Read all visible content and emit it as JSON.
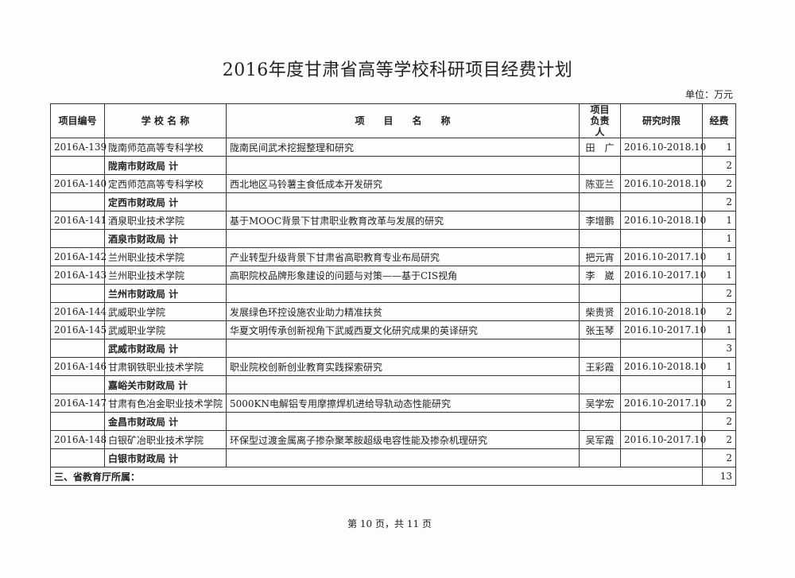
{
  "title": "2016年度甘肃省高等学校科研项目经费计划",
  "unit": "单位：万元",
  "headers": {
    "id": "项目编号",
    "school": "学 校 名 称",
    "project": "项　　目　　名　　称",
    "leader": "项目负责人",
    "period": "研究时限",
    "fund": "经费"
  },
  "rows": [
    {
      "type": "item",
      "id": "2016A-139",
      "school": "陇南师范高等专科学校",
      "project": "陇南民间武术挖掘整理和研究",
      "leader": "田　广",
      "period": "2016.10-2018.10",
      "fund": "1"
    },
    {
      "type": "subtotal",
      "school": "陇南市财政局 计",
      "fund": "2"
    },
    {
      "type": "item",
      "id": "2016A-140",
      "school": "定西师范高等专科学校",
      "project": "西北地区马铃薯主食低成本开发研究",
      "leader": "陈亚兰",
      "period": "2016.10-2018.10",
      "fund": "2"
    },
    {
      "type": "subtotal",
      "school": "定西市财政局 计",
      "fund": "2"
    },
    {
      "type": "item",
      "id": "2016A-141",
      "school": "酒泉职业技术学院",
      "project": "基于MOOC背景下甘肃职业教育改革与发展的研究",
      "leader": "李增鹏",
      "period": "2016.10-2018.10",
      "fund": "1"
    },
    {
      "type": "subtotal",
      "school": "酒泉市财政局 计",
      "fund": "1"
    },
    {
      "type": "item",
      "id": "2016A-142",
      "school": "兰州职业技术学院",
      "project": "产业转型升级背景下甘肃省高职教育专业布局研究",
      "leader": "把元宵",
      "period": "2016.10-2017.10",
      "fund": "1"
    },
    {
      "type": "item",
      "id": "2016A-143",
      "school": "兰州职业技术学院",
      "project": "高职院校品牌形象建设的问题与对策——基于CIS视角",
      "leader": "李　崴",
      "period": "2016.10-2017.10",
      "fund": "1"
    },
    {
      "type": "subtotal",
      "school": "兰州市财政局 计",
      "fund": "2"
    },
    {
      "type": "item",
      "id": "2016A-144",
      "school": "武威职业学院",
      "project": "发展绿色环控设施农业助力精准扶贫",
      "leader": "柴贵贤",
      "period": "2016.10-2018.10",
      "fund": "2"
    },
    {
      "type": "item",
      "id": "2016A-145",
      "school": "武威职业学院",
      "project": "华夏文明传承创新视角下武威西夏文化研究成果的英译研究",
      "leader": "张玉琴",
      "period": "2016.10-2017.10",
      "fund": "1"
    },
    {
      "type": "subtotal",
      "school": "武威市财政局 计",
      "fund": "3"
    },
    {
      "type": "item",
      "id": "2016A-146",
      "school": "甘肃钢铁职业技术学院",
      "project": "职业院校创新创业教育实践探索研究",
      "leader": "王彩霞",
      "period": "2016.10-2018.10",
      "fund": "1"
    },
    {
      "type": "subtotal",
      "school": "嘉峪关市财政局 计",
      "fund": "1"
    },
    {
      "type": "item",
      "id": "2016A-147",
      "school": "甘肃有色冶金职业技术学院",
      "project": "5000KN电解铝专用摩擦焊机进给导轨动态性能研究",
      "leader": "吴学宏",
      "period": "2016.10-2017.10",
      "fund": "2"
    },
    {
      "type": "subtotal",
      "school": "金昌市财政局 计",
      "fund": "2"
    },
    {
      "type": "item",
      "id": "2016A-148",
      "school": "白银矿冶职业技术学院",
      "project": "环保型过渡金属离子掺杂聚苯胺超级电容性能及掺杂机理研究",
      "leader": "吴军霞",
      "period": "2016.10-2017.10",
      "fund": "2"
    },
    {
      "type": "subtotal",
      "school": "白银市财政局 计",
      "fund": "2"
    }
  ],
  "section": {
    "label": "三、省教育厅所属：",
    "fund": "13"
  },
  "footer": "第 10 页，共 11 页"
}
